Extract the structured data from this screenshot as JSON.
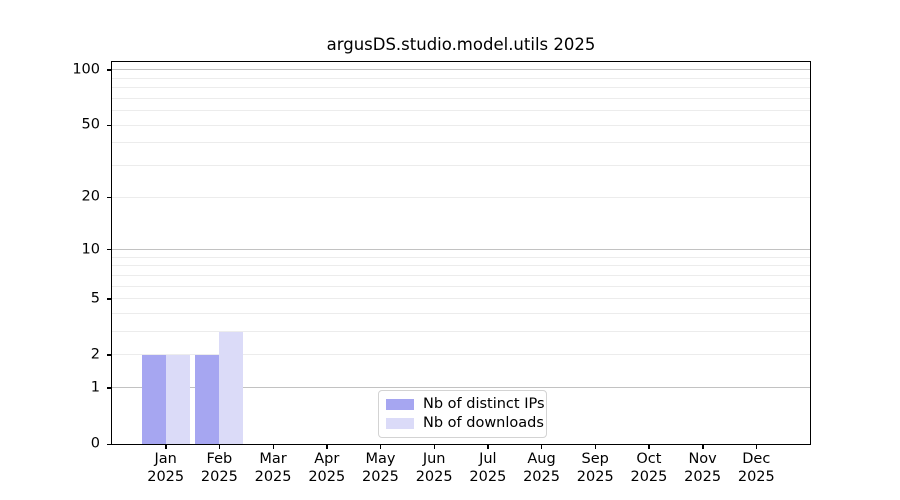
{
  "chart_data": {
    "type": "bar",
    "title": "argusDS.studio.model.utils 2025",
    "months": [
      "Jan",
      "Feb",
      "Mar",
      "Apr",
      "May",
      "Jun",
      "Jul",
      "Aug",
      "Sep",
      "Oct",
      "Nov",
      "Dec"
    ],
    "year": "2025",
    "series": [
      {
        "name": "Nb of distinct IPs",
        "color": "#a6a6f1",
        "values": [
          2,
          2,
          0,
          0,
          0,
          0,
          0,
          0,
          0,
          0,
          0,
          0
        ]
      },
      {
        "name": "Nb of downloads",
        "color": "#dbdbf8",
        "values": [
          2,
          3,
          0,
          0,
          0,
          0,
          0,
          0,
          0,
          0,
          0,
          0
        ]
      }
    ],
    "yscale": "log1p",
    "ylim": [
      0,
      110
    ],
    "y_ticks": [
      0,
      1,
      2,
      5,
      10,
      20,
      50,
      100
    ],
    "y_gridlines_major": [
      1,
      10,
      100
    ],
    "y_gridlines_minor": [
      2,
      3,
      4,
      5,
      6,
      7,
      8,
      9,
      20,
      30,
      40,
      50,
      60,
      70,
      80,
      90
    ],
    "grid": "horizontal",
    "legend_position": "lower center",
    "xlabel": "",
    "ylabel": ""
  },
  "colors": {
    "background": "#ffffff",
    "spine": "#000000",
    "grid_major": "#c2c2c2",
    "grid_minor": "#ececec",
    "legend_border": "#d3d3d3",
    "bar_distinct_ips": "#a6a6f1",
    "bar_downloads": "#dbdbf8"
  }
}
